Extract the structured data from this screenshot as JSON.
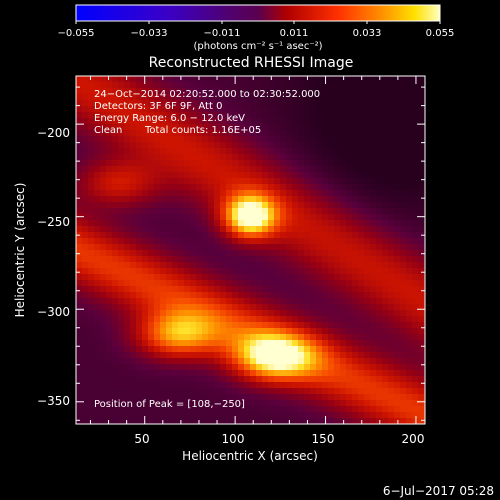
{
  "chart_data": {
    "type": "heatmap",
    "title": "Reconstructed RHESSI Image",
    "xlabel": "Heliocentric X (arcsec)",
    "ylabel": "Heliocentric Y (arcsec)",
    "xlim": [
      12,
      205
    ],
    "ylim": [
      -362,
      -174
    ],
    "x_ticks": [
      50,
      100,
      150,
      200
    ],
    "y_ticks": [
      -350,
      -300,
      -250,
      -200
    ],
    "x_tick_labels": [
      "50",
      "100",
      "150",
      "200"
    ],
    "y_tick_labels": [
      "−350",
      "−300",
      "−250",
      "−200"
    ],
    "colorbar": {
      "range": [
        -0.055,
        0.055
      ],
      "ticks": [
        -0.055,
        -0.033,
        -0.011,
        0.011,
        0.033,
        0.055
      ],
      "tick_labels": [
        "−0.055",
        "−0.033",
        "−0.011",
        "0.011",
        "0.033",
        "0.055"
      ],
      "units_label": "(photons cm⁻² s⁻¹ asec⁻²)",
      "colors": [
        "#0000ff",
        "#3a00c8",
        "#500070",
        "#5a0050",
        "#b00000",
        "#ff3000",
        "#ff9000",
        "#ffe000",
        "#ffffc0"
      ]
    },
    "annotations": {
      "time_range": "24−Oct−2014 02:20:52.000 to 02:30:52.000",
      "detectors": "Detectors: 3F 6F 9F, Att 0",
      "energy_range": "Energy Range: 6.0 − 12.0 keV",
      "method": "Clean",
      "total_counts": "Total counts: 1.16E+05",
      "peak_position": "Position of Peak = [108,−250]"
    },
    "peak": [
      108,
      -250
    ],
    "sources": [
      {
        "x": 108,
        "y": -250,
        "intensity": 0.055
      },
      {
        "x": 68,
        "y": -314,
        "intensity": 0.038
      },
      {
        "x": 121,
        "y": -326,
        "intensity": 0.045
      },
      {
        "x": 35,
        "y": -232,
        "intensity": 0.022
      }
    ],
    "footer_date": "6−Jul−2017 05:28"
  }
}
